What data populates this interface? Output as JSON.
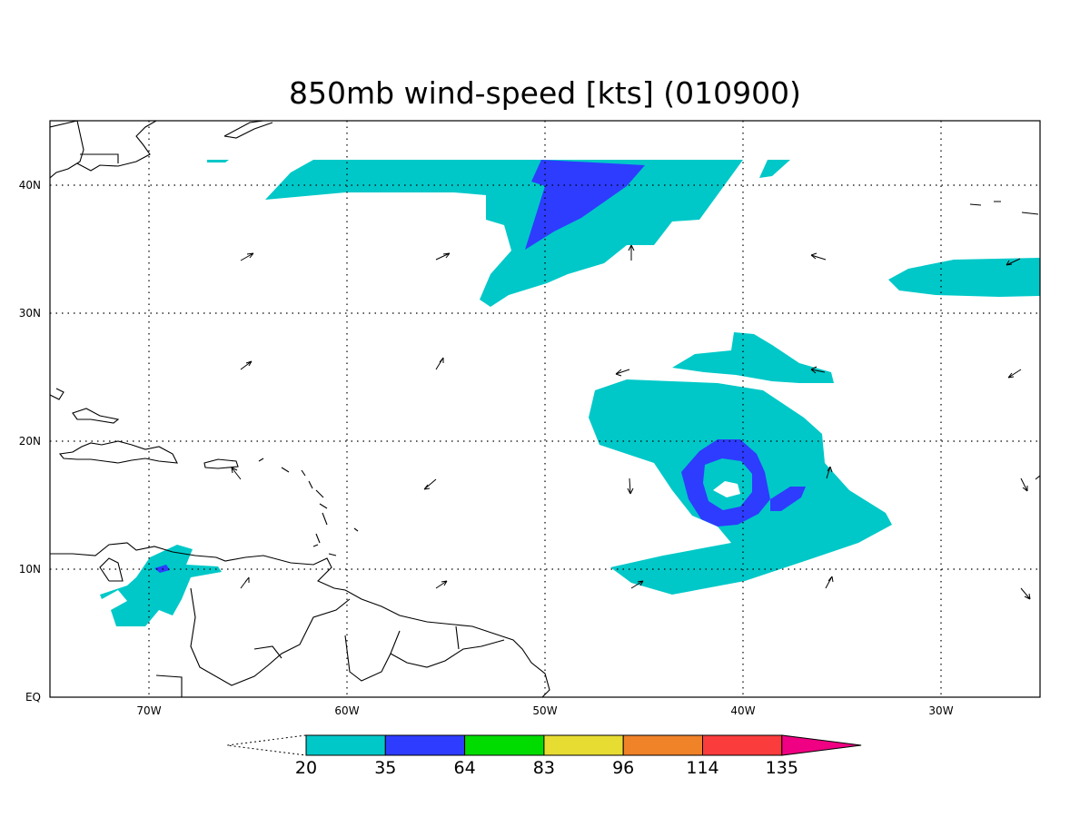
{
  "map": {
    "title": "850mb wind-speed [kts] (010900)",
    "x_ticks": [
      "70W",
      "60W",
      "50W",
      "40W",
      "30W"
    ],
    "y_ticks": [
      "EQ",
      "10N",
      "20N",
      "30N",
      "40N"
    ],
    "lon_range": [
      -75,
      -25
    ],
    "lat_range": [
      0,
      45
    ],
    "grid": true
  },
  "colorbar": {
    "levels": [
      "20",
      "35",
      "64",
      "83",
      "96",
      "114",
      "135"
    ],
    "colors": [
      "#00c8c8",
      "#2d3cff",
      "#00dc00",
      "#e6dc32",
      "#f08228",
      "#fa3c3c",
      "#f00082"
    ]
  }
}
